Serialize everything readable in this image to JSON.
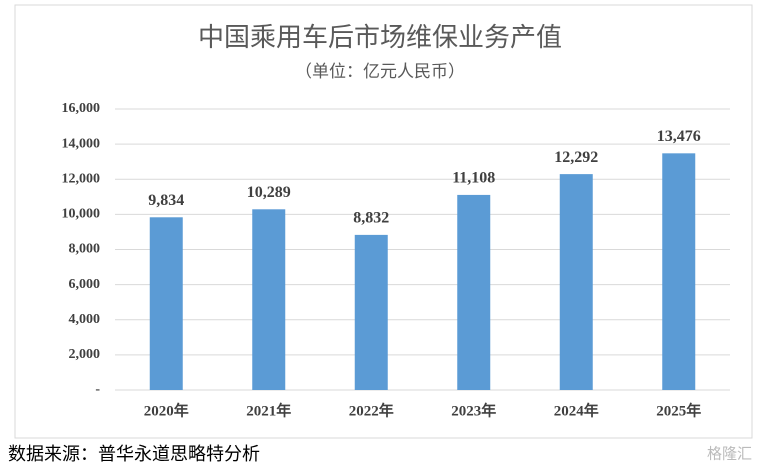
{
  "chart_data": {
    "type": "bar",
    "title": "中国乘用车后市场维保业务产值",
    "subtitle": "（单位：亿元人民币）",
    "categories": [
      "2020年",
      "2021年",
      "2022年",
      "2023年",
      "2024年",
      "2025年"
    ],
    "values": [
      9834,
      10289,
      8832,
      11108,
      12292,
      13476
    ],
    "value_labels": [
      "9,834",
      "10,289",
      "8,832",
      "11,108",
      "12,292",
      "13,476"
    ],
    "color": "#5b9bd5",
    "ylim": [
      0,
      16000
    ],
    "yticks": [
      {
        "value": 0,
        "label": "-"
      },
      {
        "value": 2000,
        "label": "2,000"
      },
      {
        "value": 4000,
        "label": "4,000"
      },
      {
        "value": 6000,
        "label": "6,000"
      },
      {
        "value": 8000,
        "label": "8,000"
      },
      {
        "value": 10000,
        "label": "10,000"
      },
      {
        "value": 12000,
        "label": "12,000"
      },
      {
        "value": 14000,
        "label": "14,000"
      },
      {
        "value": 16000,
        "label": "16,000"
      }
    ],
    "grid": true
  },
  "source": "数据来源：普华永道思略特分析",
  "watermark": "格隆汇"
}
